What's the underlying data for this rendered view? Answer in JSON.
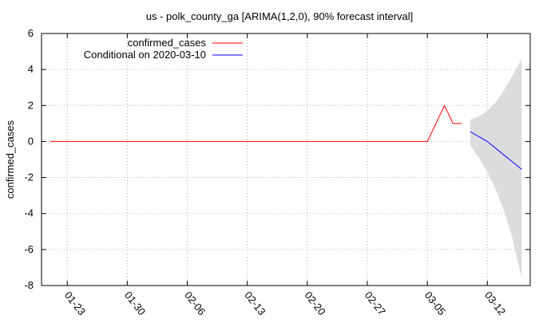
{
  "chart_data": {
    "type": "line",
    "title": "us - polk_county_ga [ARIMA(1,2,0), 90% forecast interval]",
    "xlabel": "",
    "ylabel": "confirmed_cases",
    "x_axis_type": "date",
    "xlim": [
      "2020-01-20",
      "2020-03-17"
    ],
    "ylim": [
      -8,
      6
    ],
    "grid": true,
    "legend_position": "top-left",
    "y_ticks": [
      -8,
      -6,
      -4,
      -2,
      0,
      2,
      4,
      6
    ],
    "x_ticks": [
      {
        "date": "2020-01-23",
        "label": "01-23"
      },
      {
        "date": "2020-01-30",
        "label": "01-30"
      },
      {
        "date": "2020-02-06",
        "label": "02-06"
      },
      {
        "date": "2020-02-13",
        "label": "02-13"
      },
      {
        "date": "2020-02-20",
        "label": "02-20"
      },
      {
        "date": "2020-02-27",
        "label": "02-27"
      },
      {
        "date": "2020-03-05",
        "label": "03-05"
      },
      {
        "date": "2020-03-12",
        "label": "03-12"
      }
    ],
    "series": [
      {
        "name": "confirmed_cases",
        "color": "#ff0000",
        "points": [
          {
            "x": "2020-01-21",
            "y": 0
          },
          {
            "x": "2020-03-05",
            "y": 0
          },
          {
            "x": "2020-03-07",
            "y": 2
          },
          {
            "x": "2020-03-08",
            "y": 1
          },
          {
            "x": "2020-03-09",
            "y": 1
          }
        ]
      },
      {
        "name": "Conditional on 2020-03-10",
        "color": "#0000ff",
        "points": [
          {
            "x": "2020-03-10",
            "y": 0.55
          },
          {
            "x": "2020-03-12",
            "y": 0.0
          },
          {
            "x": "2020-03-16",
            "y": -1.55
          }
        ]
      }
    ],
    "forecast_interval": {
      "level": "90%",
      "color": "#dcdcdc",
      "points": [
        {
          "x": "2020-03-10",
          "lower": -0.2,
          "upper": 1.2
        },
        {
          "x": "2020-03-11",
          "lower": -0.9,
          "upper": 1.4
        },
        {
          "x": "2020-03-12",
          "lower": -1.7,
          "upper": 1.7
        },
        {
          "x": "2020-03-13",
          "lower": -2.7,
          "upper": 2.2
        },
        {
          "x": "2020-03-14",
          "lower": -3.9,
          "upper": 2.9
        },
        {
          "x": "2020-03-15",
          "lower": -5.5,
          "upper": 3.7
        },
        {
          "x": "2020-03-16",
          "lower": -7.6,
          "upper": 4.6
        }
      ]
    }
  }
}
